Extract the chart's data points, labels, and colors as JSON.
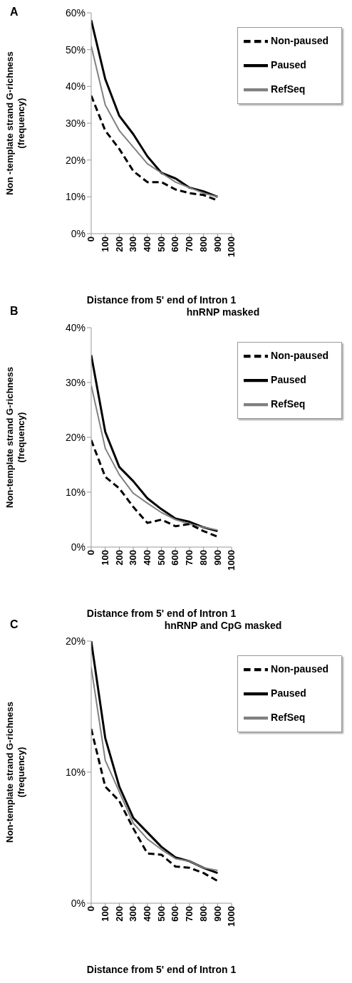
{
  "chart_data": [
    {
      "type": "line",
      "annotations": [
        "A"
      ],
      "xlabel": "Distance from 5' end of Intron 1",
      "ylabel": "Non -template strand G-richness\n(frequency)",
      "x": [
        0,
        100,
        200,
        300,
        400,
        500,
        600,
        700,
        800,
        900
      ],
      "xlim": [
        0,
        1000
      ],
      "xticks": [
        0,
        100,
        200,
        300,
        400,
        500,
        600,
        700,
        800,
        900,
        1000
      ],
      "ylim": [
        0,
        60
      ],
      "yticks": [
        {
          "value": 0,
          "label": "0%"
        },
        {
          "value": 10,
          "label": "10%"
        },
        {
          "value": 20,
          "label": "20%"
        },
        {
          "value": 30,
          "label": "30%"
        },
        {
          "value": 40,
          "label": "40%"
        },
        {
          "value": 50,
          "label": "50%"
        },
        {
          "value": 60,
          "label": "60%"
        }
      ],
      "grid": false,
      "legend": "top right",
      "marker": "none",
      "series": [
        {
          "name": "Paused",
          "color": "#000000",
          "line_style": "solid",
          "values": [
            58,
            42,
            32,
            27,
            21,
            16.5,
            15,
            12.5,
            11.5,
            10
          ]
        },
        {
          "name": "RefSeq",
          "color": "#808080",
          "line_style": "solid",
          "values": [
            51,
            35,
            28,
            23.5,
            19,
            16.5,
            14,
            12.5,
            11,
            10
          ]
        },
        {
          "name": "Non-paused",
          "color": "#000000",
          "line_style": "dashed",
          "values": [
            37.5,
            28,
            23,
            17,
            14,
            14,
            12,
            11,
            10.5,
            9
          ]
        }
      ]
    },
    {
      "type": "line",
      "title": "hnRNP masked",
      "annotations": [
        "B"
      ],
      "xlabel": "Distance from 5' end of Intron 1",
      "ylabel": "Non-template strand G-richness\n(frequency)",
      "x": [
        0,
        100,
        200,
        300,
        400,
        500,
        600,
        700,
        800,
        900
      ],
      "xlim": [
        0,
        1000
      ],
      "xticks": [
        0,
        100,
        200,
        300,
        400,
        500,
        600,
        700,
        800,
        900,
        1000
      ],
      "ylim": [
        0,
        40
      ],
      "yticks": [
        {
          "value": 0,
          "label": "0%"
        },
        {
          "value": 10,
          "label": "10%"
        },
        {
          "value": 20,
          "label": "20%"
        },
        {
          "value": 30,
          "label": "30%"
        },
        {
          "value": 40,
          "label": "40%"
        }
      ],
      "grid": false,
      "legend": "top right",
      "marker": "none",
      "series": [
        {
          "name": "Paused",
          "color": "#000000",
          "line_style": "solid",
          "values": [
            35,
            21,
            14.6,
            12,
            8.9,
            6.9,
            5.2,
            4.6,
            3.6,
            2.9
          ]
        },
        {
          "name": "RefSeq",
          "color": "#808080",
          "line_style": "solid",
          "values": [
            29.5,
            18,
            13.2,
            9.8,
            8,
            6.3,
            5,
            4.2,
            3.6,
            3.1
          ]
        },
        {
          "name": "Non-paused",
          "color": "#000000",
          "line_style": "dashed",
          "values": [
            19.5,
            12.8,
            10.7,
            7.3,
            4.4,
            5,
            3.8,
            4.2,
            2.9,
            1.9
          ]
        }
      ]
    },
    {
      "type": "line",
      "title": "hnRNP and CpG masked",
      "annotations": [
        "C"
      ],
      "xlabel": "Distance from 5' end of Intron 1",
      "ylabel": "Non-template strand G-richness\n(frequency)",
      "x": [
        0,
        100,
        200,
        300,
        400,
        500,
        600,
        700,
        800,
        900
      ],
      "xlim": [
        0,
        1000
      ],
      "xticks": [
        0,
        100,
        200,
        300,
        400,
        500,
        600,
        700,
        800,
        900,
        1000
      ],
      "ylim": [
        0,
        20
      ],
      "yticks": [
        {
          "value": 0,
          "label": "0%"
        },
        {
          "value": 10,
          "label": "10%"
        },
        {
          "value": 20,
          "label": "20%"
        }
      ],
      "grid": false,
      "legend": "top right",
      "marker": "none",
      "series": [
        {
          "name": "Paused",
          "color": "#000000",
          "line_style": "solid",
          "values": [
            20,
            12.6,
            8.9,
            6.5,
            5.4,
            4.3,
            3.5,
            3.2,
            2.7,
            2.3
          ]
        },
        {
          "name": "RefSeq",
          "color": "#808080",
          "line_style": "solid",
          "values": [
            18,
            10.9,
            8.5,
            6.1,
            4.9,
            4.1,
            3.4,
            3.2,
            2.7,
            2.5
          ]
        },
        {
          "name": "Non-paused",
          "color": "#000000",
          "line_style": "dashed",
          "values": [
            13.3,
            8.9,
            7.8,
            5.7,
            3.8,
            3.7,
            2.8,
            2.7,
            2.3,
            1.7
          ]
        }
      ]
    }
  ]
}
